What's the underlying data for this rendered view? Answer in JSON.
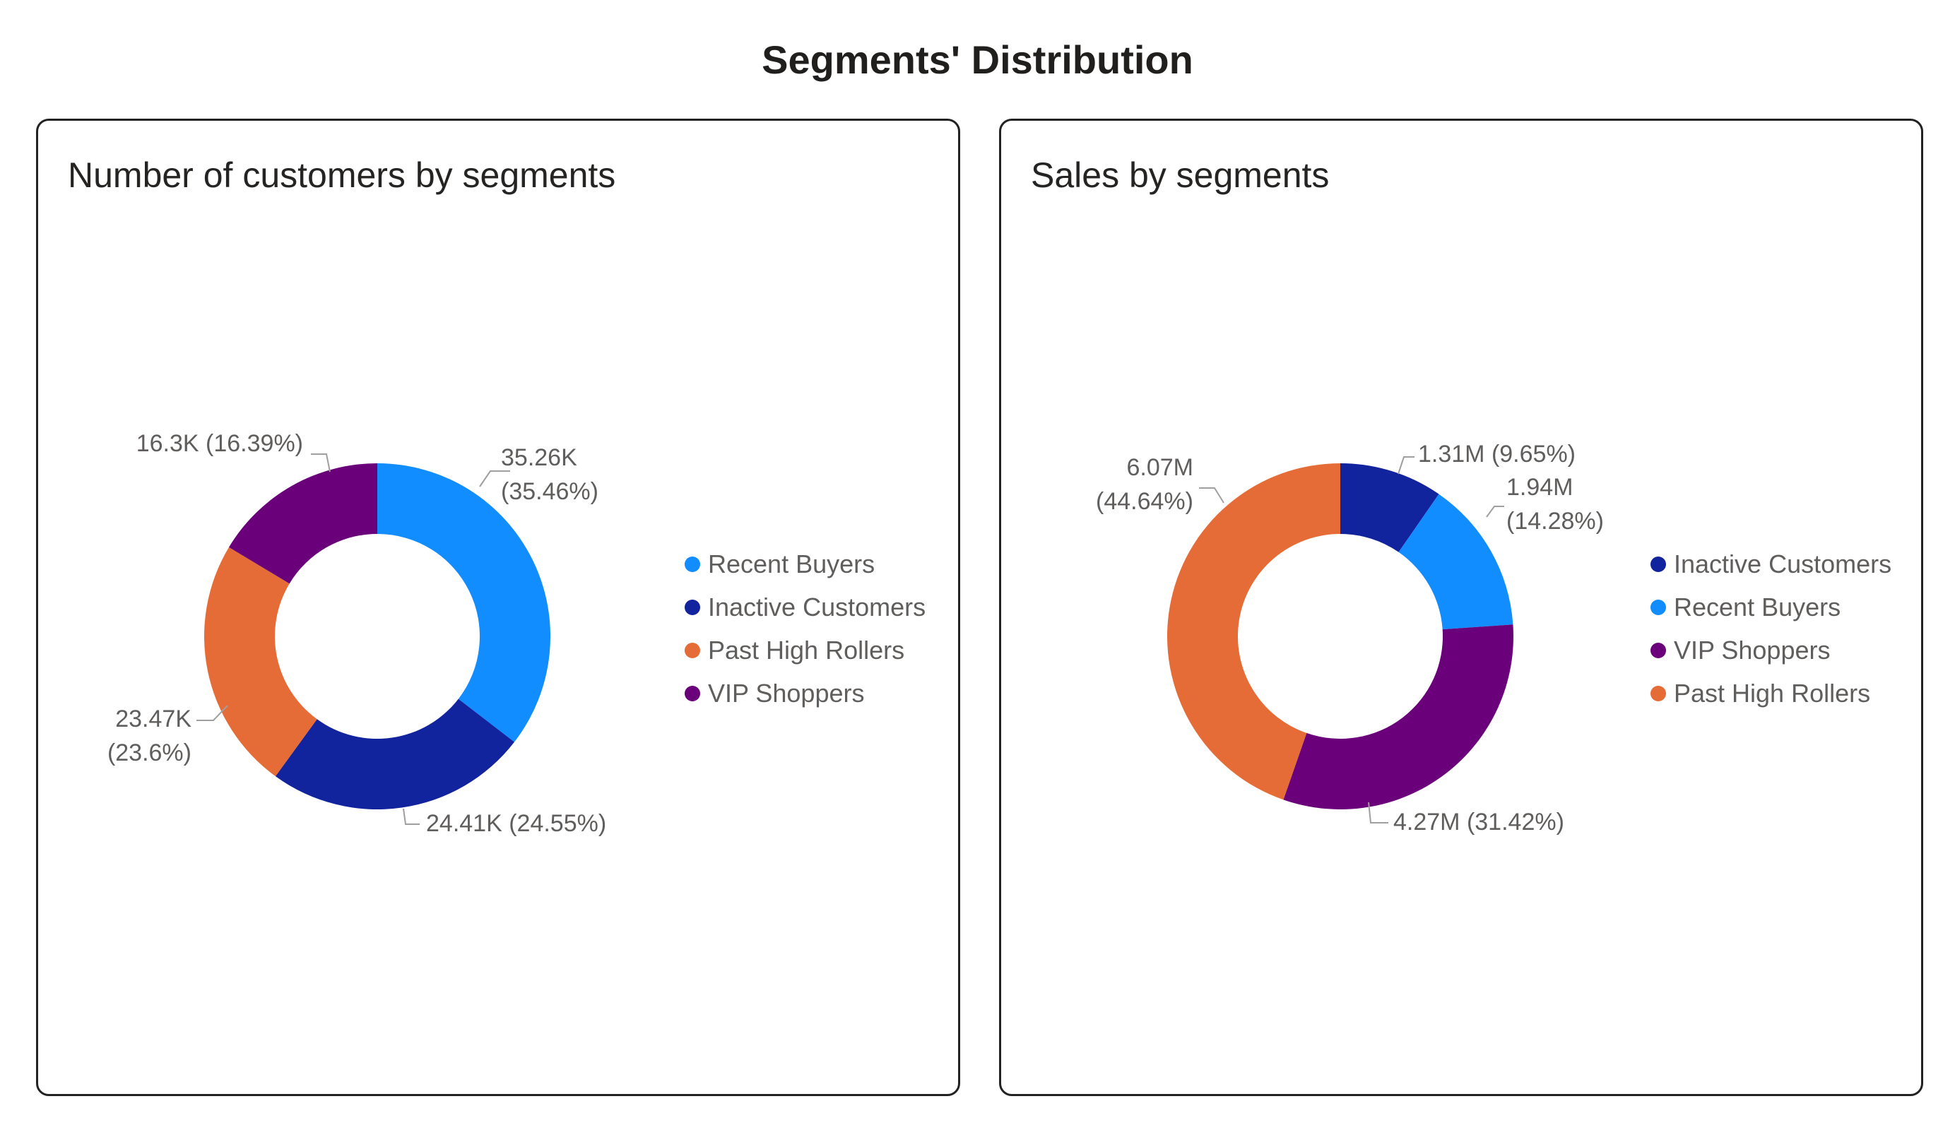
{
  "page": {
    "title": "Segments' Distribution"
  },
  "chart_data": [
    {
      "type": "donut",
      "title": "Number of customers by segments",
      "legend_position": "right",
      "slices": [
        {
          "name": "Recent Buyers",
          "value": 35.26,
          "label": [
            "35.26K",
            "(35.46%)"
          ],
          "color": "#118DFF"
        },
        {
          "name": "Inactive Customers",
          "value": 24.41,
          "label": [
            "24.41K (24.55%)"
          ],
          "color": "#12239E"
        },
        {
          "name": "Past High Rollers",
          "value": 23.47,
          "label": [
            "23.47K",
            "(23.6%)"
          ],
          "color": "#E66C37"
        },
        {
          "name": "VIP Shoppers",
          "value": 16.3,
          "label": [
            "16.3K (16.39%)"
          ],
          "color": "#6B007B"
        }
      ]
    },
    {
      "type": "donut",
      "title": "Sales by segments",
      "legend_position": "right",
      "slices": [
        {
          "name": "Inactive Customers",
          "value": 1.31,
          "label": [
            "1.31M (9.65%)"
          ],
          "color": "#12239E"
        },
        {
          "name": "Recent Buyers",
          "value": 1.94,
          "label": [
            "1.94M",
            "(14.28%)"
          ],
          "color": "#118DFF"
        },
        {
          "name": "VIP Shoppers",
          "value": 4.27,
          "label": [
            "4.27M (31.42%)"
          ],
          "color": "#6B007B"
        },
        {
          "name": "Past High Rollers",
          "value": 6.07,
          "label": [
            "6.07M",
            "(44.64%)"
          ],
          "color": "#E66C37"
        }
      ]
    }
  ]
}
